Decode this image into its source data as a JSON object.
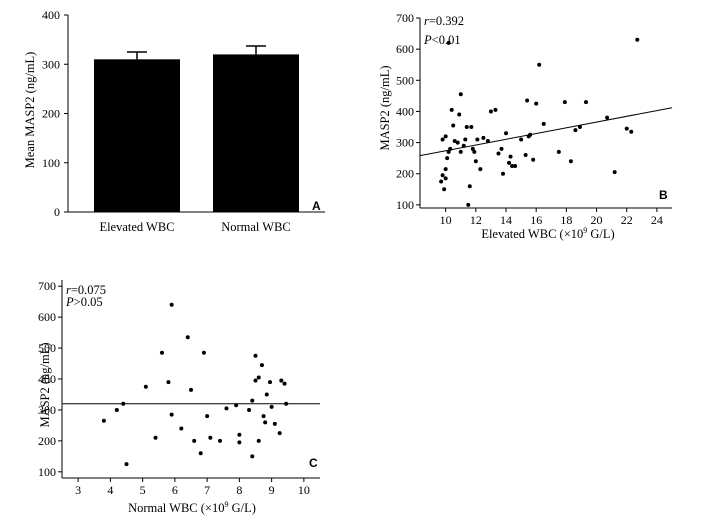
{
  "chart_data": [
    {
      "panel": "A",
      "type": "bar",
      "categories": [
        "Elevated WBC",
        "Normal WBC"
      ],
      "values": [
        310,
        320
      ],
      "errors": [
        15,
        17
      ],
      "ylabel": "Mean MASP2 (ng/mL)",
      "xlabel": "",
      "ylim": [
        0,
        400
      ],
      "yticks": [
        0,
        100,
        200,
        300,
        400
      ],
      "bar_color": "#000000"
    },
    {
      "panel": "B",
      "type": "scatter",
      "xlabel_main": "Elevated WBC (×10",
      "xlabel_sup": "9",
      "xlabel_tail": " G/L)",
      "ylabel": "MASP2 (ng/mL)",
      "xlim": [
        8.3,
        25
      ],
      "ylim": [
        90,
        700
      ],
      "xticks": [
        10,
        12,
        14,
        16,
        18,
        20,
        22,
        24
      ],
      "yticks": [
        100,
        200,
        300,
        400,
        500,
        600,
        700
      ],
      "stats": {
        "r_symbol": "r",
        "r_value": "=0.392",
        "p_symbol": "P",
        "p_value": "<0.01"
      },
      "trendline": {
        "x": [
          8.3,
          25
        ],
        "y": [
          258,
          412
        ]
      },
      "points": [
        [
          9.7,
          175
        ],
        [
          9.8,
          195
        ],
        [
          9.9,
          150
        ],
        [
          10.0,
          185
        ],
        [
          10.0,
          215
        ],
        [
          10.1,
          250
        ],
        [
          9.8,
          310
        ],
        [
          10.0,
          320
        ],
        [
          10.2,
          270
        ],
        [
          10.3,
          280
        ],
        [
          10.2,
          620
        ],
        [
          10.4,
          405
        ],
        [
          10.5,
          355
        ],
        [
          10.6,
          305
        ],
        [
          10.8,
          300
        ],
        [
          10.9,
          390
        ],
        [
          11.0,
          455
        ],
        [
          11.0,
          270
        ],
        [
          11.2,
          290
        ],
        [
          11.3,
          310
        ],
        [
          11.4,
          350
        ],
        [
          11.5,
          100
        ],
        [
          11.6,
          160
        ],
        [
          11.7,
          350
        ],
        [
          11.8,
          280
        ],
        [
          11.9,
          270
        ],
        [
          12.0,
          240
        ],
        [
          12.1,
          310
        ],
        [
          12.3,
          215
        ],
        [
          12.5,
          315
        ],
        [
          12.8,
          305
        ],
        [
          13.0,
          400
        ],
        [
          13.3,
          405
        ],
        [
          13.5,
          265
        ],
        [
          13.7,
          280
        ],
        [
          13.8,
          200
        ],
        [
          14.0,
          330
        ],
        [
          14.2,
          235
        ],
        [
          14.3,
          255
        ],
        [
          14.4,
          225
        ],
        [
          14.6,
          225
        ],
        [
          15.0,
          310
        ],
        [
          15.3,
          260
        ],
        [
          15.4,
          435
        ],
        [
          15.5,
          320
        ],
        [
          15.6,
          325
        ],
        [
          15.8,
          245
        ],
        [
          16.0,
          425
        ],
        [
          16.2,
          550
        ],
        [
          16.5,
          360
        ],
        [
          17.5,
          270
        ],
        [
          17.9,
          430
        ],
        [
          18.3,
          240
        ],
        [
          18.6,
          340
        ],
        [
          18.9,
          350
        ],
        [
          19.3,
          430
        ],
        [
          20.7,
          380
        ],
        [
          21.2,
          205
        ],
        [
          22.0,
          345
        ],
        [
          22.3,
          335
        ],
        [
          22.7,
          630
        ]
      ]
    },
    {
      "panel": "C",
      "type": "scatter",
      "xlabel_main": "Normal WBC (×10",
      "xlabel_sup": "9",
      "xlabel_tail": " G/L)",
      "ylabel": "MASP2 (ng/mL)",
      "xlim": [
        2.5,
        10.5
      ],
      "ylim": [
        80,
        720
      ],
      "xticks": [
        3,
        4,
        5,
        6,
        7,
        8,
        9,
        10
      ],
      "yticks": [
        100,
        200,
        300,
        400,
        500,
        600,
        700
      ],
      "stats": {
        "r_symbol": "r",
        "r_value": "=0.075",
        "p_symbol": "P",
        "p_value": ">0.05"
      },
      "trendline": {
        "x": [
          2.5,
          10.5
        ],
        "y": [
          320,
          320
        ]
      },
      "points": [
        [
          3.8,
          265
        ],
        [
          4.2,
          300
        ],
        [
          4.4,
          320
        ],
        [
          4.5,
          125
        ],
        [
          5.1,
          375
        ],
        [
          5.4,
          210
        ],
        [
          5.6,
          485
        ],
        [
          5.8,
          390
        ],
        [
          5.9,
          640
        ],
        [
          5.9,
          285
        ],
        [
          6.2,
          240
        ],
        [
          6.4,
          535
        ],
        [
          6.5,
          365
        ],
        [
          6.6,
          200
        ],
        [
          6.8,
          160
        ],
        [
          6.9,
          485
        ],
        [
          7.0,
          280
        ],
        [
          7.1,
          210
        ],
        [
          7.4,
          200
        ],
        [
          7.6,
          305
        ],
        [
          7.9,
          315
        ],
        [
          8.0,
          220
        ],
        [
          8.0,
          195
        ],
        [
          8.3,
          300
        ],
        [
          8.4,
          330
        ],
        [
          8.4,
          150
        ],
        [
          8.5,
          475
        ],
        [
          8.5,
          395
        ],
        [
          8.6,
          200
        ],
        [
          8.6,
          405
        ],
        [
          8.7,
          445
        ],
        [
          8.75,
          280
        ],
        [
          8.8,
          260
        ],
        [
          8.85,
          350
        ],
        [
          8.95,
          390
        ],
        [
          9.0,
          310
        ],
        [
          9.1,
          255
        ],
        [
          9.25,
          225
        ],
        [
          9.3,
          395
        ],
        [
          9.4,
          385
        ],
        [
          9.45,
          320
        ]
      ]
    }
  ]
}
